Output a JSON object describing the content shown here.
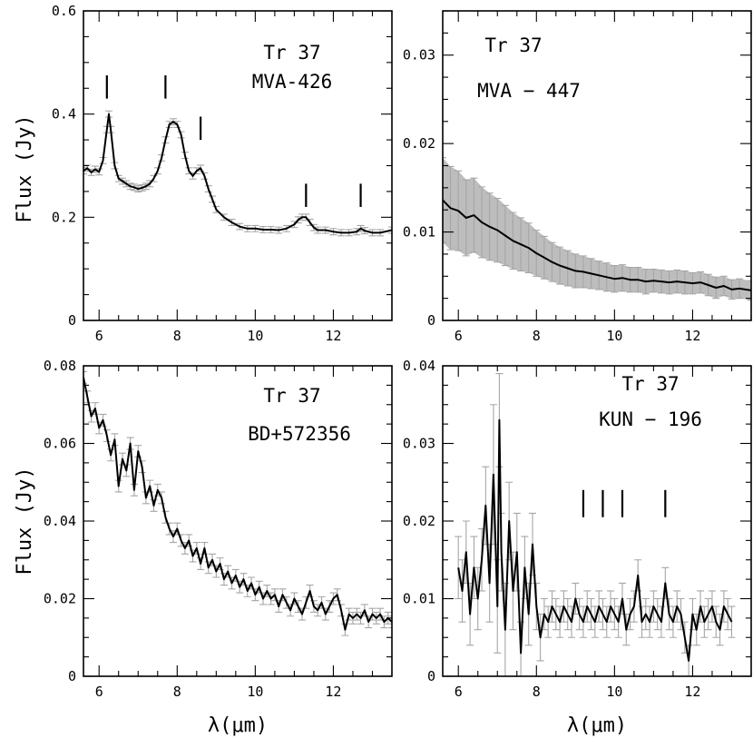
{
  "chart_data": [
    {
      "id": "p1",
      "type": "line",
      "xlim": [
        5.6,
        13.5
      ],
      "ylim": [
        0,
        0.6
      ],
      "xticks": [
        6,
        8,
        10,
        12
      ],
      "yticks": [
        0,
        0.2,
        0.4,
        0.6
      ],
      "xtick_labels": [
        "6",
        "8",
        "10",
        "12"
      ],
      "ytick_labels": [
        "0",
        "0.2",
        "0.4",
        "0.6"
      ],
      "ylabel": "Flux (Jy)",
      "xlabel": "",
      "annotation_lines": [
        "Tr 37",
        "MVA-426"
      ],
      "feature_markers": [
        {
          "x": 6.2,
          "y1": 0.43,
          "y2": 0.475
        },
        {
          "x": 7.7,
          "y1": 0.43,
          "y2": 0.475
        },
        {
          "x": 8.6,
          "y1": 0.35,
          "y2": 0.395
        },
        {
          "x": 11.3,
          "y1": 0.22,
          "y2": 0.265
        },
        {
          "x": 12.7,
          "y1": 0.22,
          "y2": 0.265
        }
      ],
      "error_style": "bars",
      "series": [
        {
          "name": "MVA-426",
          "x": [
            5.6,
            5.7,
            5.8,
            5.9,
            6.0,
            6.1,
            6.2,
            6.25,
            6.3,
            6.4,
            6.5,
            6.6,
            6.7,
            6.8,
            6.9,
            7.0,
            7.1,
            7.2,
            7.3,
            7.4,
            7.5,
            7.6,
            7.7,
            7.8,
            7.9,
            8.0,
            8.1,
            8.2,
            8.3,
            8.4,
            8.5,
            8.6,
            8.7,
            8.8,
            8.9,
            9.0,
            9.2,
            9.4,
            9.6,
            9.8,
            10.0,
            10.2,
            10.4,
            10.6,
            10.8,
            11.0,
            11.1,
            11.2,
            11.3,
            11.4,
            11.5,
            11.6,
            11.8,
            12.0,
            12.2,
            12.4,
            12.6,
            12.7,
            12.8,
            13.0,
            13.2,
            13.5
          ],
          "y": [
            0.29,
            0.295,
            0.287,
            0.293,
            0.288,
            0.31,
            0.37,
            0.4,
            0.37,
            0.3,
            0.275,
            0.27,
            0.265,
            0.26,
            0.258,
            0.255,
            0.257,
            0.26,
            0.265,
            0.275,
            0.29,
            0.315,
            0.35,
            0.38,
            0.385,
            0.38,
            0.36,
            0.32,
            0.29,
            0.28,
            0.29,
            0.295,
            0.28,
            0.255,
            0.235,
            0.215,
            0.2,
            0.19,
            0.182,
            0.178,
            0.178,
            0.176,
            0.176,
            0.175,
            0.178,
            0.186,
            0.195,
            0.2,
            0.2,
            0.19,
            0.18,
            0.175,
            0.175,
            0.172,
            0.17,
            0.17,
            0.172,
            0.178,
            0.174,
            0.17,
            0.17,
            0.175
          ],
          "err": 0.006
        }
      ]
    },
    {
      "id": "p2",
      "type": "line",
      "xlim": [
        5.6,
        13.5
      ],
      "ylim": [
        0,
        0.035
      ],
      "xticks": [
        6,
        8,
        10,
        12
      ],
      "yticks": [
        0,
        0.01,
        0.02,
        0.03
      ],
      "xtick_labels": [
        "6",
        "8",
        "10",
        "12"
      ],
      "ytick_labels": [
        "0",
        "0.01",
        "0.02",
        "0.03"
      ],
      "ylabel": "",
      "xlabel": "",
      "annotation_lines": [
        "Tr 37",
        "MVA − 447"
      ],
      "feature_markers": [],
      "error_style": "band",
      "series": [
        {
          "name": "MVA-447",
          "x": [
            5.6,
            5.8,
            6.0,
            6.2,
            6.4,
            6.6,
            6.8,
            7.0,
            7.2,
            7.4,
            7.6,
            7.8,
            8.0,
            8.2,
            8.4,
            8.6,
            8.8,
            9.0,
            9.2,
            9.4,
            9.6,
            9.8,
            10.0,
            10.2,
            10.4,
            10.6,
            10.8,
            11.0,
            11.2,
            11.4,
            11.6,
            11.8,
            12.0,
            12.2,
            12.4,
            12.6,
            12.8,
            13.0,
            13.2,
            13.5
          ],
          "y": [
            0.0136,
            0.0127,
            0.0124,
            0.0116,
            0.0119,
            0.0111,
            0.0106,
            0.0102,
            0.0096,
            0.009,
            0.0086,
            0.0082,
            0.0076,
            0.0071,
            0.0066,
            0.0062,
            0.0059,
            0.0056,
            0.0055,
            0.0053,
            0.0051,
            0.0049,
            0.0047,
            0.0048,
            0.0046,
            0.0046,
            0.0044,
            0.0045,
            0.0044,
            0.0043,
            0.0044,
            0.0043,
            0.0042,
            0.0043,
            0.004,
            0.0037,
            0.0039,
            0.0035,
            0.0036,
            0.0034
          ],
          "err": [
            0.0048,
            0.0047,
            0.0045,
            0.0043,
            0.0042,
            0.004,
            0.0038,
            0.0036,
            0.0034,
            0.0032,
            0.003,
            0.0028,
            0.0026,
            0.0024,
            0.0022,
            0.0021,
            0.002,
            0.0019,
            0.0018,
            0.0017,
            0.0016,
            0.0016,
            0.0015,
            0.0015,
            0.0014,
            0.0014,
            0.0014,
            0.0013,
            0.0013,
            0.0013,
            0.0013,
            0.0013,
            0.0012,
            0.0012,
            0.0012,
            0.0012,
            0.0011,
            0.0011,
            0.0011,
            0.0011
          ]
        }
      ]
    },
    {
      "id": "p3",
      "type": "line",
      "xlim": [
        5.6,
        13.5
      ],
      "ylim": [
        0,
        0.08
      ],
      "xticks": [
        6,
        8,
        10,
        12
      ],
      "yticks": [
        0,
        0.02,
        0.04,
        0.06,
        0.08
      ],
      "xtick_labels": [
        "6",
        "8",
        "10",
        "12"
      ],
      "ytick_labels": [
        "0",
        "0.02",
        "0.04",
        "0.06",
        "0.08"
      ],
      "ylabel": "Flux (Jy)",
      "xlabel": "λ(μm)",
      "annotation_lines": [
        "Tr 37",
        "BD+572356"
      ],
      "feature_markers": [],
      "error_style": "bars",
      "series": [
        {
          "name": "BD+572356",
          "x": [
            5.6,
            5.7,
            5.8,
            5.9,
            6.0,
            6.1,
            6.2,
            6.3,
            6.4,
            6.5,
            6.6,
            6.7,
            6.8,
            6.9,
            7.0,
            7.1,
            7.2,
            7.3,
            7.4,
            7.5,
            7.6,
            7.7,
            7.8,
            7.9,
            8.0,
            8.1,
            8.2,
            8.3,
            8.4,
            8.5,
            8.6,
            8.7,
            8.8,
            8.9,
            9.0,
            9.1,
            9.2,
            9.3,
            9.4,
            9.5,
            9.6,
            9.7,
            9.8,
            9.9,
            10.0,
            10.1,
            10.2,
            10.3,
            10.4,
            10.5,
            10.6,
            10.7,
            10.8,
            10.9,
            11.0,
            11.1,
            11.2,
            11.3,
            11.4,
            11.5,
            11.6,
            11.7,
            11.8,
            11.9,
            12.0,
            12.1,
            12.2,
            12.3,
            12.4,
            12.5,
            12.6,
            12.7,
            12.8,
            12.9,
            13.0,
            13.1,
            13.2,
            13.3,
            13.4,
            13.5
          ],
          "y": [
            0.077,
            0.072,
            0.067,
            0.069,
            0.064,
            0.066,
            0.062,
            0.057,
            0.061,
            0.049,
            0.056,
            0.053,
            0.06,
            0.048,
            0.058,
            0.054,
            0.046,
            0.049,
            0.044,
            0.048,
            0.046,
            0.041,
            0.038,
            0.036,
            0.038,
            0.035,
            0.033,
            0.035,
            0.031,
            0.033,
            0.029,
            0.033,
            0.028,
            0.03,
            0.027,
            0.029,
            0.025,
            0.027,
            0.024,
            0.026,
            0.023,
            0.025,
            0.022,
            0.024,
            0.021,
            0.023,
            0.02,
            0.022,
            0.02,
            0.021,
            0.018,
            0.021,
            0.019,
            0.017,
            0.02,
            0.018,
            0.016,
            0.019,
            0.022,
            0.018,
            0.017,
            0.019,
            0.016,
            0.018,
            0.02,
            0.021,
            0.017,
            0.012,
            0.016,
            0.015,
            0.016,
            0.015,
            0.017,
            0.014,
            0.016,
            0.015,
            0.016,
            0.014,
            0.015,
            0.014
          ],
          "err": 0.0015
        }
      ]
    },
    {
      "id": "p4",
      "type": "line",
      "xlim": [
        5.6,
        13.5
      ],
      "ylim": [
        0,
        0.04
      ],
      "xticks": [
        6,
        8,
        10,
        12
      ],
      "yticks": [
        0,
        0.01,
        0.02,
        0.03,
        0.04
      ],
      "xtick_labels": [
        "6",
        "8",
        "10",
        "12"
      ],
      "ytick_labels": [
        "0",
        "0.01",
        "0.02",
        "0.03",
        "0.04"
      ],
      "ylabel": "",
      "xlabel": "λ(μm)",
      "annotation_lines": [
        "Tr 37",
        "KUN − 196"
      ],
      "feature_markers": [
        {
          "x": 9.2,
          "y1": 0.0205,
          "y2": 0.024
        },
        {
          "x": 9.7,
          "y1": 0.0205,
          "y2": 0.024
        },
        {
          "x": 10.2,
          "y1": 0.0205,
          "y2": 0.024
        },
        {
          "x": 11.3,
          "y1": 0.0205,
          "y2": 0.024
        }
      ],
      "error_style": "bars",
      "series": [
        {
          "name": "KUN-196",
          "x": [
            6.0,
            6.1,
            6.2,
            6.3,
            6.4,
            6.5,
            6.6,
            6.7,
            6.8,
            6.9,
            7.0,
            7.05,
            7.1,
            7.2,
            7.3,
            7.4,
            7.5,
            7.6,
            7.7,
            7.8,
            7.9,
            8.0,
            8.1,
            8.2,
            8.3,
            8.4,
            8.5,
            8.6,
            8.7,
            8.8,
            8.9,
            9.0,
            9.1,
            9.2,
            9.3,
            9.4,
            9.5,
            9.6,
            9.7,
            9.8,
            9.9,
            10.0,
            10.1,
            10.2,
            10.3,
            10.4,
            10.5,
            10.6,
            10.7,
            10.8,
            10.9,
            11.0,
            11.1,
            11.2,
            11.3,
            11.4,
            11.5,
            11.6,
            11.7,
            11.8,
            11.9,
            12.0,
            12.1,
            12.2,
            12.3,
            12.4,
            12.5,
            12.6,
            12.7,
            12.8,
            12.9,
            13.0
          ],
          "y": [
            0.014,
            0.011,
            0.016,
            0.008,
            0.014,
            0.01,
            0.015,
            0.022,
            0.012,
            0.026,
            0.009,
            0.033,
            0.016,
            0.006,
            0.02,
            0.011,
            0.016,
            0.003,
            0.014,
            0.008,
            0.017,
            0.009,
            0.005,
            0.008,
            0.007,
            0.009,
            0.008,
            0.007,
            0.009,
            0.008,
            0.007,
            0.01,
            0.008,
            0.007,
            0.009,
            0.008,
            0.007,
            0.009,
            0.008,
            0.007,
            0.009,
            0.008,
            0.007,
            0.01,
            0.006,
            0.008,
            0.009,
            0.013,
            0.007,
            0.008,
            0.007,
            0.009,
            0.008,
            0.007,
            0.012,
            0.008,
            0.007,
            0.009,
            0.008,
            0.005,
            0.002,
            0.008,
            0.006,
            0.009,
            0.007,
            0.008,
            0.009,
            0.007,
            0.006,
            0.009,
            0.008,
            0.007
          ],
          "err": [
            0.004,
            0.004,
            0.004,
            0.004,
            0.004,
            0.004,
            0.004,
            0.005,
            0.005,
            0.009,
            0.006,
            0.006,
            0.005,
            0.006,
            0.005,
            0.005,
            0.005,
            0.004,
            0.004,
            0.004,
            0.004,
            0.003,
            0.003,
            0.002,
            0.002,
            0.002,
            0.002,
            0.002,
            0.002,
            0.002,
            0.002,
            0.002,
            0.002,
            0.002,
            0.002,
            0.002,
            0.002,
            0.002,
            0.002,
            0.002,
            0.002,
            0.002,
            0.002,
            0.002,
            0.002,
            0.002,
            0.002,
            0.002,
            0.002,
            0.002,
            0.002,
            0.002,
            0.002,
            0.002,
            0.002,
            0.002,
            0.002,
            0.002,
            0.002,
            0.002,
            0.002,
            0.002,
            0.002,
            0.002,
            0.002,
            0.002,
            0.002,
            0.002,
            0.002,
            0.002,
            0.002,
            0.002
          ]
        }
      ]
    }
  ]
}
